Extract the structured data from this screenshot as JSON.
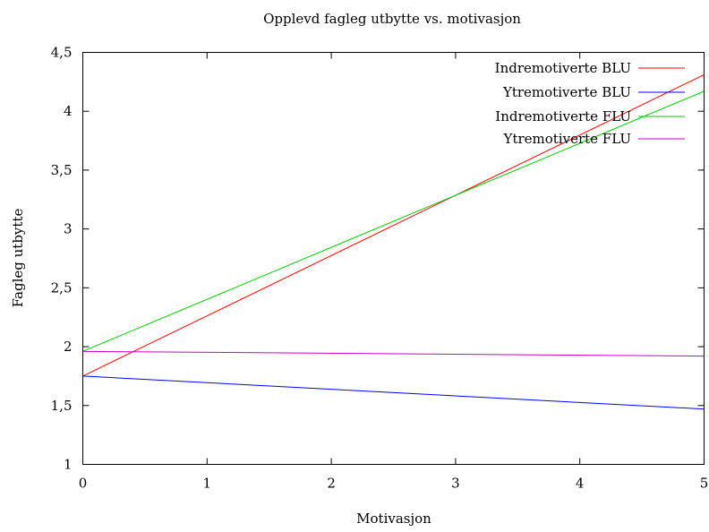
{
  "chart_data": {
    "type": "line",
    "title": "Opplevd fagleg utbytte vs. motivasjon",
    "xlabel": "Motivasjon",
    "ylabel": "Fagleg utbytte",
    "xlim": [
      0,
      5
    ],
    "ylim": [
      1,
      4.5
    ],
    "x_ticks": [
      {
        "value": 0,
        "label": "0"
      },
      {
        "value": 1,
        "label": "1"
      },
      {
        "value": 2,
        "label": "2"
      },
      {
        "value": 3,
        "label": "3"
      },
      {
        "value": 4,
        "label": "4"
      },
      {
        "value": 5,
        "label": "5"
      }
    ],
    "y_ticks": [
      {
        "value": 1,
        "label": "1"
      },
      {
        "value": 1.5,
        "label": "1,5"
      },
      {
        "value": 2,
        "label": "2"
      },
      {
        "value": 2.5,
        "label": "2,5"
      },
      {
        "value": 3,
        "label": "3"
      },
      {
        "value": 3.5,
        "label": "3,5"
      },
      {
        "value": 4,
        "label": "4"
      },
      {
        "value": 4.5,
        "label": "4,5"
      }
    ],
    "grid": false,
    "legend_position": "top-right",
    "series": [
      {
        "name": "Indremotiverte BLU",
        "color": "#ff0000",
        "x": [
          0,
          5
        ],
        "y": [
          1.75,
          4.31
        ]
      },
      {
        "name": "Ytremotiverte BLU",
        "color": "#0000ff",
        "x": [
          0,
          5
        ],
        "y": [
          1.75,
          1.47
        ]
      },
      {
        "name": "Indremotiverte FLU",
        "color": "#00cc00",
        "x": [
          0,
          5
        ],
        "y": [
          1.96,
          4.17
        ]
      },
      {
        "name": "Ytremotiverte FLU",
        "color": "#cc00cc",
        "x": [
          0,
          5
        ],
        "y": [
          1.96,
          1.92
        ]
      }
    ]
  }
}
